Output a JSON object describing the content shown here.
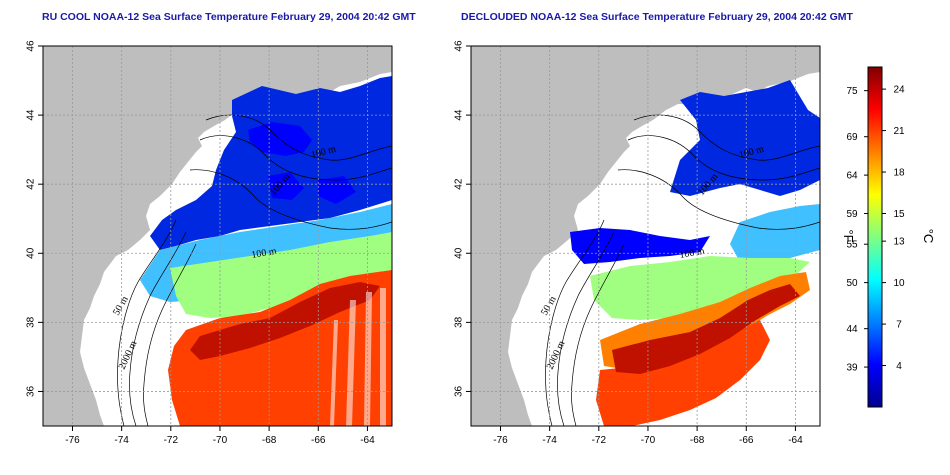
{
  "maps": [
    {
      "id": "left",
      "title": "RU COOL NOAA-12 Sea Surface Temperature February 29, 2004 20:42 GMT",
      "contour_labels": [
        "100 m",
        "100 m",
        "50 m",
        "2000 m",
        "100 m"
      ],
      "mode": "raw"
    },
    {
      "id": "right",
      "title": "DECLOUDED NOAA-12 Sea Surface Temperature February 29, 2004 20:42 GMT",
      "contour_labels": [
        "100 m",
        "100 m",
        "50 m",
        "2000 m",
        "100 m"
      ],
      "mode": "declouded"
    }
  ],
  "axes": {
    "lon_ticks": [
      "-76",
      "-74",
      "-72",
      "-70",
      "-68",
      "-66",
      "-64"
    ],
    "lat_ticks": [
      "36",
      "38",
      "40",
      "42",
      "44",
      "46"
    ],
    "lon_range": [
      -77.2,
      -63.0
    ],
    "lat_range": [
      35.0,
      46.0
    ],
    "grid": true
  },
  "colorbar": {
    "fahrenheit_ticks": [
      "75",
      "69",
      "64",
      "59",
      "55",
      "50",
      "44",
      "39"
    ],
    "celsius_ticks": [
      "24",
      "21",
      "18",
      "15",
      "13",
      "10",
      "7",
      "4"
    ],
    "fahrenheit_label": "°F",
    "celsius_label": "°C",
    "colors": [
      "#00008f",
      "#0000ff",
      "#0080ff",
      "#00ffff",
      "#80ff80",
      "#ffff00",
      "#ff8000",
      "#ff0000",
      "#800000"
    ]
  },
  "colors": {
    "land": "#bebebe",
    "title": "#1a1aa8",
    "background": "#ffffff"
  }
}
